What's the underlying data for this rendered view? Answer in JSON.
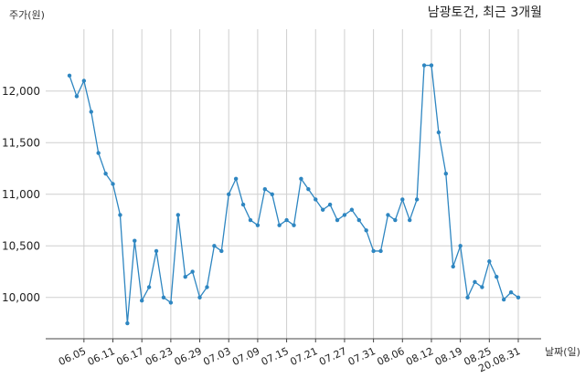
{
  "chart_data": {
    "type": "line",
    "title": "남광토건, 최근 3개월",
    "ylabel": "주가(원)",
    "xlabel": "날짜(일)",
    "ylim": [
      9600,
      12600
    ],
    "y_ticks": [
      10000,
      10500,
      11000,
      11500,
      12000
    ],
    "y_tick_labels": [
      "10,000",
      "10,500",
      "11,000",
      "11,500",
      "12,000"
    ],
    "x_tick_labels": [
      "06.05",
      "06.11",
      "06.17",
      "06.23",
      "06.29",
      "07.03",
      "07.09",
      "07.15",
      "07.21",
      "07.27",
      "07.31",
      "08.06",
      "08.12",
      "08.19",
      "08.25",
      "20.08.31"
    ],
    "x_tick_indices": [
      2,
      6,
      10,
      14,
      18,
      22,
      26,
      30,
      34,
      38,
      42,
      46,
      50,
      54,
      58,
      62
    ],
    "grid": true,
    "color": "#2e86c1",
    "series": [
      {
        "values": [
          12150,
          11950,
          12100,
          11800,
          11400,
          11200,
          11100,
          10800,
          9750,
          10550,
          9970,
          10100,
          10450,
          10000,
          9950,
          10800,
          10200,
          10250,
          10000,
          10100,
          10500,
          10450,
          11000,
          11150,
          10900,
          10750,
          10700,
          11050,
          11000,
          10700,
          10750,
          10700,
          11150,
          11050,
          10950,
          10850,
          10900,
          10750,
          10800,
          10850,
          10750,
          10650,
          10450,
          10450,
          10800,
          10750,
          10950,
          10750,
          10950,
          12250,
          12250,
          11600,
          11200,
          10300,
          10500,
          10000,
          10150,
          10100,
          10350,
          10200,
          9980,
          10050,
          10000
        ]
      }
    ]
  }
}
